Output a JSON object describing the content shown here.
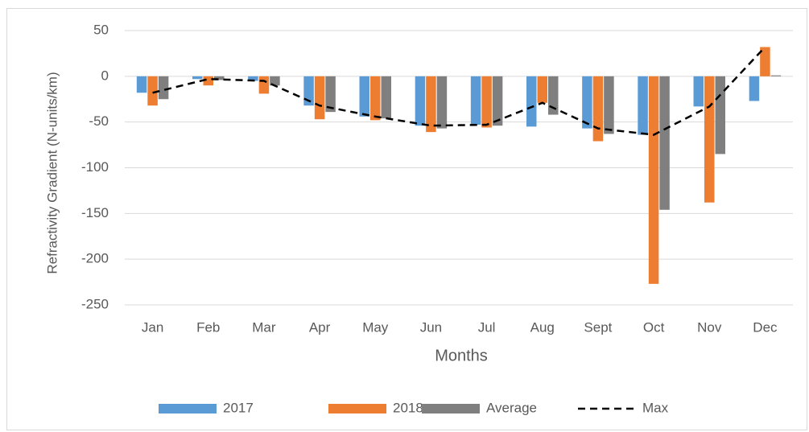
{
  "chart_data": {
    "type": "bar",
    "y_label": "Refractivity Gradient (N-units/km)",
    "x_label": "Months",
    "categories": [
      "Jan",
      "Feb",
      "Mar",
      "Apr",
      "May",
      "Jun",
      "Jul",
      "Aug",
      "Sept",
      "Oct",
      "Nov",
      "Dec"
    ],
    "series": [
      {
        "name": "2017",
        "color": "#5b9bd5",
        "values": [
          -18,
          -3,
          -5,
          -32,
          -44,
          -54,
          -53,
          -55,
          -57,
          -64,
          -33,
          -27
        ]
      },
      {
        "name": "2018",
        "color": "#ed7d31",
        "values": [
          -32,
          -10,
          -19,
          -47,
          -48,
          -61,
          -56,
          -29,
          -71,
          -227,
          -138,
          32
        ]
      },
      {
        "name": "Average",
        "color": "#7f7f7f",
        "values": [
          -25,
          -4,
          -10,
          -39,
          -46,
          -57,
          -54,
          -42,
          -63,
          -146,
          -85,
          1
        ]
      },
      {
        "name": "Max",
        "color": "#000000",
        "kind": "line",
        "values": [
          -18,
          -3,
          -5,
          -32,
          -44,
          -54,
          -53,
          -29,
          -57,
          -64,
          -33,
          32
        ]
      }
    ],
    "ylim": [
      -250,
      50
    ],
    "yticks": [
      -250,
      -200,
      -150,
      -100,
      -50,
      0,
      50
    ],
    "grid": true,
    "legend": "bottom"
  }
}
